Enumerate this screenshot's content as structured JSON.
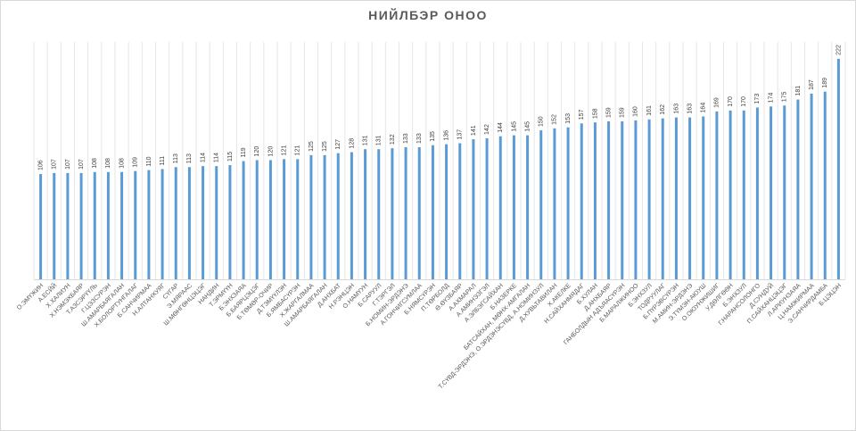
{
  "chart_data": {
    "type": "bar",
    "title": "НИЙЛБЭР ОНОО",
    "xlabel": "",
    "ylabel": "",
    "ylim": [
      0,
      230
    ],
    "grid": "vertical",
    "legend": "none",
    "bar_color": "#5b9bd5",
    "categories": [
      "О.ЭМҮЖИН",
      "А.ЕСЙЙ",
      "Х.ХАЛИУН",
      "Х.НЭМЭХБАЯР",
      "Т.АЗСЭРҮҮЛЬ",
      "Г.ЦЭЗСУРЭН",
      "Ш.АМАРБАЯГАЛАН",
      "Х.БОЛОРТУНГАЛАГ",
      "Б.САНЧИРМАА",
      "Н.АЛТАНХУЯГ",
      "СҮГАР",
      "Э.МЯРААС",
      "Ш.МӨНГӨНЦЭЦЭГ",
      "НАНДИН",
      "Т.ЭРМҮҮН",
      "Б.ЭНХЗАЯА",
      "Б.БАЯРЦЭЦЭГ",
      "Б.ТӨМӨР-ОЧИР",
      "Д.ТЭМҮҮЛЭН",
      "Б.ЯМБАСҮРЭН",
      "Х.ЖАРГАЛМАА",
      "Ш.АМАРБАЯГАЛАН",
      "Д.АНХБАТ",
      "Н.РЭНЦЭН",
      "О.НАМҮУН",
      "Б.САРУУЛ",
      "Г.ТЭРГЭЛ",
      "Б.НОМИН-ЭРДЭНЭ",
      "А.ГОНЧИГСУМЛАА",
      "Б.НЯМСҮРЭН",
      "П.ТӨРБОЛД",
      "Ө.ӨҮЗБАЯР",
      "А.АХМАРАЛ",
      "А.АМИНЭЗГЭЛ",
      "А.ЭЛБЭГСАЙХАН",
      "Б.НАЗЕРКЕ",
      "БАТСАЙХАН, МӨНХ-АМГАЛАН",
      "Т.СҮВД-ЭРДЭНЭ, О.ЭРДЭНЭСҮВД, А.НОМИНЗУЛ",
      "Д.ХУВЬТАВИЛАН",
      "Х.АКЕЛКЕ",
      "Н.САЙХАНМЯДАГ",
      "Б.ХУЛАН",
      "Д.АНХБАЯР",
      "ГАНБОЛДЫН АДЪЯАСҮРЭН",
      "Б.МАРАЛЖИНОО",
      "Б.ЭНХЗУЛ",
      "ТОДРУУЛАГ",
      "Б.ПҮРЭВСҮРЭН",
      "М.АМИН-ЭРДЭНЭ",
      "Э.ТҮМЭН-АЮУШ",
      "О.ОЮУНЖИШИГ",
      "У.ДӨЛГӨӨН",
      "Б.ЭНХЗУЛ",
      "Г.НАРАНСОЛОНГО",
      "Д.СУНДУЙ",
      "П.САЙХАНЦЭЦЭГ",
      "Л.АРИУНЗАЯА",
      "Ц.НАМЖИРМАА",
      "Э.САНЧИРДАМБА",
      "Б.ЦЭЦЭН"
    ],
    "values": [
      106,
      107,
      107,
      107,
      108,
      108,
      108,
      109,
      110,
      111,
      113,
      113,
      114,
      114,
      115,
      119,
      120,
      120,
      121,
      121,
      125,
      125,
      127,
      128,
      131,
      131,
      132,
      133,
      133,
      135,
      136,
      137,
      141,
      142,
      144,
      145,
      145,
      150,
      152,
      153,
      157,
      158,
      159,
      159,
      160,
      161,
      162,
      163,
      163,
      164,
      169,
      170,
      170,
      173,
      174,
      175,
      181,
      187,
      189,
      222
    ]
  }
}
